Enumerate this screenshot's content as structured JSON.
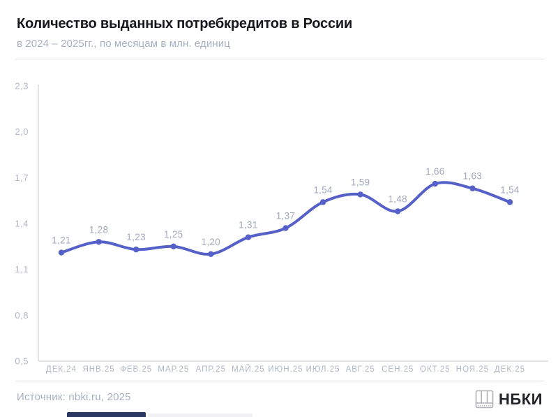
{
  "header": {
    "title": "Количество выданных потребкредитов в России",
    "subtitle": "в 2024 – 2025гг., по месяцам в млн. единиц"
  },
  "chart_data": {
    "type": "line",
    "title": "Количество выданных потребкредитов в России",
    "subtitle": "в 2024 – 2025гг., по месяцам в млн. единиц",
    "categories": [
      "ДЕК.24",
      "ЯНВ.25",
      "ФЕВ.25",
      "МАР.25",
      "АПР.25",
      "МАЙ.25",
      "ИЮН.25",
      "ИЮЛ.25",
      "АВГ.25",
      "СЕН.25",
      "ОКТ.25",
      "НОЯ.25",
      "ДЕК.25"
    ],
    "values": [
      1.21,
      1.28,
      1.23,
      1.25,
      1.2,
      1.31,
      1.37,
      1.54,
      1.59,
      1.48,
      1.66,
      1.63,
      1.54
    ],
    "value_labels": [
      "1,21",
      "1,28",
      "1,23",
      "1,25",
      "1,20",
      "1,31",
      "1,37",
      "1,54",
      "1,59",
      "1,48",
      "1,66",
      "1,63",
      "1,54"
    ],
    "xlabel": "",
    "ylabel": "млн. единиц",
    "ylim": [
      0.5,
      2.3
    ],
    "yticks": [
      0.5,
      0.8,
      1.1,
      1.4,
      1.7,
      2.0,
      2.3
    ],
    "ytick_labels": [
      "0,5",
      "0,8",
      "1,1",
      "1,4",
      "1,7",
      "2,0",
      "2,3"
    ],
    "grid": false,
    "legend": "none",
    "colors": {
      "line": "#5560c8",
      "point": "#5560c8",
      "value_label": "#a2a8bc",
      "tick_label": "#b1b6c6",
      "axis": "#d9dce4"
    }
  },
  "footer": {
    "source": "Источник: nbki.ru, 2025",
    "logo_text": "НБКИ",
    "logo_icon": "book-columns-icon"
  }
}
